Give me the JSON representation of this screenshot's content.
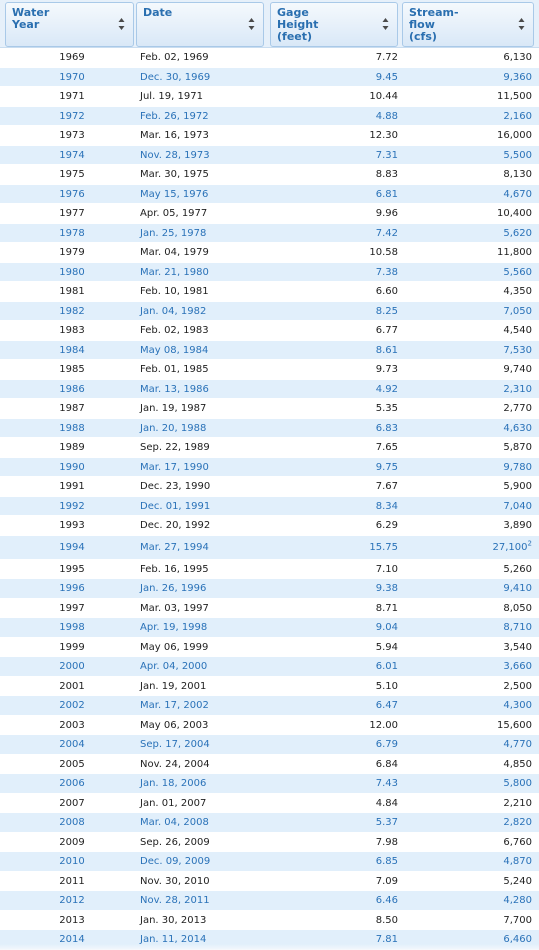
{
  "table": {
    "headers": {
      "water_year": [
        "Water",
        "Year"
      ],
      "date": [
        "Date"
      ],
      "gage_height": [
        "Gage",
        "Height",
        "(feet)"
      ],
      "streamflow": [
        "Stream-",
        "flow",
        "(cfs)"
      ]
    },
    "rows": [
      {
        "year": "1969",
        "date": "Feb. 02, 1969",
        "gage": "7.72",
        "flow": "6,130",
        "note": ""
      },
      {
        "year": "1970",
        "date": "Dec. 30, 1969",
        "gage": "9.45",
        "flow": "9,360",
        "note": ""
      },
      {
        "year": "1971",
        "date": "Jul. 19, 1971",
        "gage": "10.44",
        "flow": "11,500",
        "note": ""
      },
      {
        "year": "1972",
        "date": "Feb. 26, 1972",
        "gage": "4.88",
        "flow": "2,160",
        "note": ""
      },
      {
        "year": "1973",
        "date": "Mar. 16, 1973",
        "gage": "12.30",
        "flow": "16,000",
        "note": ""
      },
      {
        "year": "1974",
        "date": "Nov. 28, 1973",
        "gage": "7.31",
        "flow": "5,500",
        "note": ""
      },
      {
        "year": "1975",
        "date": "Mar. 30, 1975",
        "gage": "8.83",
        "flow": "8,130",
        "note": ""
      },
      {
        "year": "1976",
        "date": "May 15, 1976",
        "gage": "6.81",
        "flow": "4,670",
        "note": ""
      },
      {
        "year": "1977",
        "date": "Apr. 05, 1977",
        "gage": "9.96",
        "flow": "10,400",
        "note": ""
      },
      {
        "year": "1978",
        "date": "Jan. 25, 1978",
        "gage": "7.42",
        "flow": "5,620",
        "note": ""
      },
      {
        "year": "1979",
        "date": "Mar. 04, 1979",
        "gage": "10.58",
        "flow": "11,800",
        "note": ""
      },
      {
        "year": "1980",
        "date": "Mar. 21, 1980",
        "gage": "7.38",
        "flow": "5,560",
        "note": ""
      },
      {
        "year": "1981",
        "date": "Feb. 10, 1981",
        "gage": "6.60",
        "flow": "4,350",
        "note": ""
      },
      {
        "year": "1982",
        "date": "Jan. 04, 1982",
        "gage": "8.25",
        "flow": "7,050",
        "note": ""
      },
      {
        "year": "1983",
        "date": "Feb. 02, 1983",
        "gage": "6.77",
        "flow": "4,540",
        "note": ""
      },
      {
        "year": "1984",
        "date": "May 08, 1984",
        "gage": "8.61",
        "flow": "7,530",
        "note": ""
      },
      {
        "year": "1985",
        "date": "Feb. 01, 1985",
        "gage": "9.73",
        "flow": "9,740",
        "note": ""
      },
      {
        "year": "1986",
        "date": "Mar. 13, 1986",
        "gage": "4.92",
        "flow": "2,310",
        "note": ""
      },
      {
        "year": "1987",
        "date": "Jan. 19, 1987",
        "gage": "5.35",
        "flow": "2,770",
        "note": ""
      },
      {
        "year": "1988",
        "date": "Jan. 20, 1988",
        "gage": "6.83",
        "flow": "4,630",
        "note": ""
      },
      {
        "year": "1989",
        "date": "Sep. 22, 1989",
        "gage": "7.65",
        "flow": "5,870",
        "note": ""
      },
      {
        "year": "1990",
        "date": "Mar. 17, 1990",
        "gage": "9.75",
        "flow": "9,780",
        "note": ""
      },
      {
        "year": "1991",
        "date": "Dec. 23, 1990",
        "gage": "7.67",
        "flow": "5,900",
        "note": ""
      },
      {
        "year": "1992",
        "date": "Dec. 01, 1991",
        "gage": "8.34",
        "flow": "7,040",
        "note": ""
      },
      {
        "year": "1993",
        "date": "Dec. 20, 1992",
        "gage": "6.29",
        "flow": "3,890",
        "note": ""
      },
      {
        "year": "1994",
        "date": "Mar. 27, 1994",
        "gage": "15.75",
        "flow": "27,100",
        "note": "2"
      },
      {
        "year": "1995",
        "date": "Feb. 16, 1995",
        "gage": "7.10",
        "flow": "5,260",
        "note": ""
      },
      {
        "year": "1996",
        "date": "Jan. 26, 1996",
        "gage": "9.38",
        "flow": "9,410",
        "note": ""
      },
      {
        "year": "1997",
        "date": "Mar. 03, 1997",
        "gage": "8.71",
        "flow": "8,050",
        "note": ""
      },
      {
        "year": "1998",
        "date": "Apr. 19, 1998",
        "gage": "9.04",
        "flow": "8,710",
        "note": ""
      },
      {
        "year": "1999",
        "date": "May 06, 1999",
        "gage": "5.94",
        "flow": "3,540",
        "note": ""
      },
      {
        "year": "2000",
        "date": "Apr. 04, 2000",
        "gage": "6.01",
        "flow": "3,660",
        "note": ""
      },
      {
        "year": "2001",
        "date": "Jan. 19, 2001",
        "gage": "5.10",
        "flow": "2,500",
        "note": ""
      },
      {
        "year": "2002",
        "date": "Mar. 17, 2002",
        "gage": "6.47",
        "flow": "4,300",
        "note": ""
      },
      {
        "year": "2003",
        "date": "May 06, 2003",
        "gage": "12.00",
        "flow": "15,600",
        "note": ""
      },
      {
        "year": "2004",
        "date": "Sep. 17, 2004",
        "gage": "6.79",
        "flow": "4,770",
        "note": ""
      },
      {
        "year": "2005",
        "date": "Nov. 24, 2004",
        "gage": "6.84",
        "flow": "4,850",
        "note": ""
      },
      {
        "year": "2006",
        "date": "Jan. 18, 2006",
        "gage": "7.43",
        "flow": "5,800",
        "note": ""
      },
      {
        "year": "2007",
        "date": "Jan. 01, 2007",
        "gage": "4.84",
        "flow": "2,210",
        "note": ""
      },
      {
        "year": "2008",
        "date": "Mar. 04, 2008",
        "gage": "5.37",
        "flow": "2,820",
        "note": ""
      },
      {
        "year": "2009",
        "date": "Sep. 26, 2009",
        "gage": "7.98",
        "flow": "6,760",
        "note": ""
      },
      {
        "year": "2010",
        "date": "Dec. 09, 2009",
        "gage": "6.85",
        "flow": "4,870",
        "note": ""
      },
      {
        "year": "2011",
        "date": "Nov. 30, 2010",
        "gage": "7.09",
        "flow": "5,240",
        "note": ""
      },
      {
        "year": "2012",
        "date": "Nov. 28, 2011",
        "gage": "6.46",
        "flow": "4,280",
        "note": ""
      },
      {
        "year": "2013",
        "date": "Jan. 30, 2013",
        "gage": "8.50",
        "flow": "7,700",
        "note": ""
      },
      {
        "year": "2014",
        "date": "Jan. 11, 2014",
        "gage": "7.81",
        "flow": "6,460",
        "note": ""
      }
    ]
  },
  "icons": {
    "sort": "sort-updown-icon"
  },
  "colors": {
    "header_text": "#2a6fb0",
    "row_alt_bg": "#e1effb",
    "row_alt_text": "#2a72b8",
    "row_text": "#222222"
  }
}
